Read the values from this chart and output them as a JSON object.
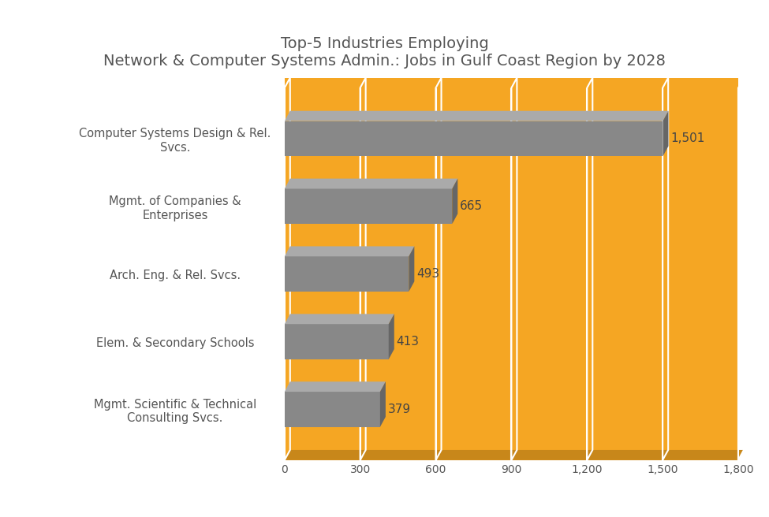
{
  "title": "Top-5 Industries Employing\nNetwork & Computer Systems Admin.: Jobs in Gulf Coast Region by 2028",
  "categories": [
    "Computer Systems Design & Rel.\nSvcs.",
    "Mgmt. of Companies &\nEnterprises",
    "Arch. Eng. & Rel. Svcs.",
    "Elem. & Secondary Schools",
    "Mgmt. Scientific & Technical\nConsulting Svcs."
  ],
  "values": [
    1501,
    665,
    493,
    413,
    379
  ],
  "bar_color_face": "#888888",
  "bar_color_top": "#aaaaaa",
  "bar_color_side": "#666666",
  "orange_color": "#F5A623",
  "orange_dark": "#c8871a",
  "fig_bg_color": "#ffffff",
  "title_color": "#555555",
  "label_color": "#555555",
  "tick_label_color": "#555555",
  "value_label_color": "#444444",
  "xlim": [
    0,
    1800
  ],
  "xticks": [
    0,
    300,
    600,
    900,
    1200,
    1500,
    1800
  ],
  "xtick_labels": [
    "0",
    "300",
    "600",
    "900",
    "1,200",
    "1,500",
    "1,800"
  ],
  "title_fontsize": 14,
  "bar_height": 0.52,
  "grid_color": "#ffffff",
  "grid_linewidth": 1.5
}
